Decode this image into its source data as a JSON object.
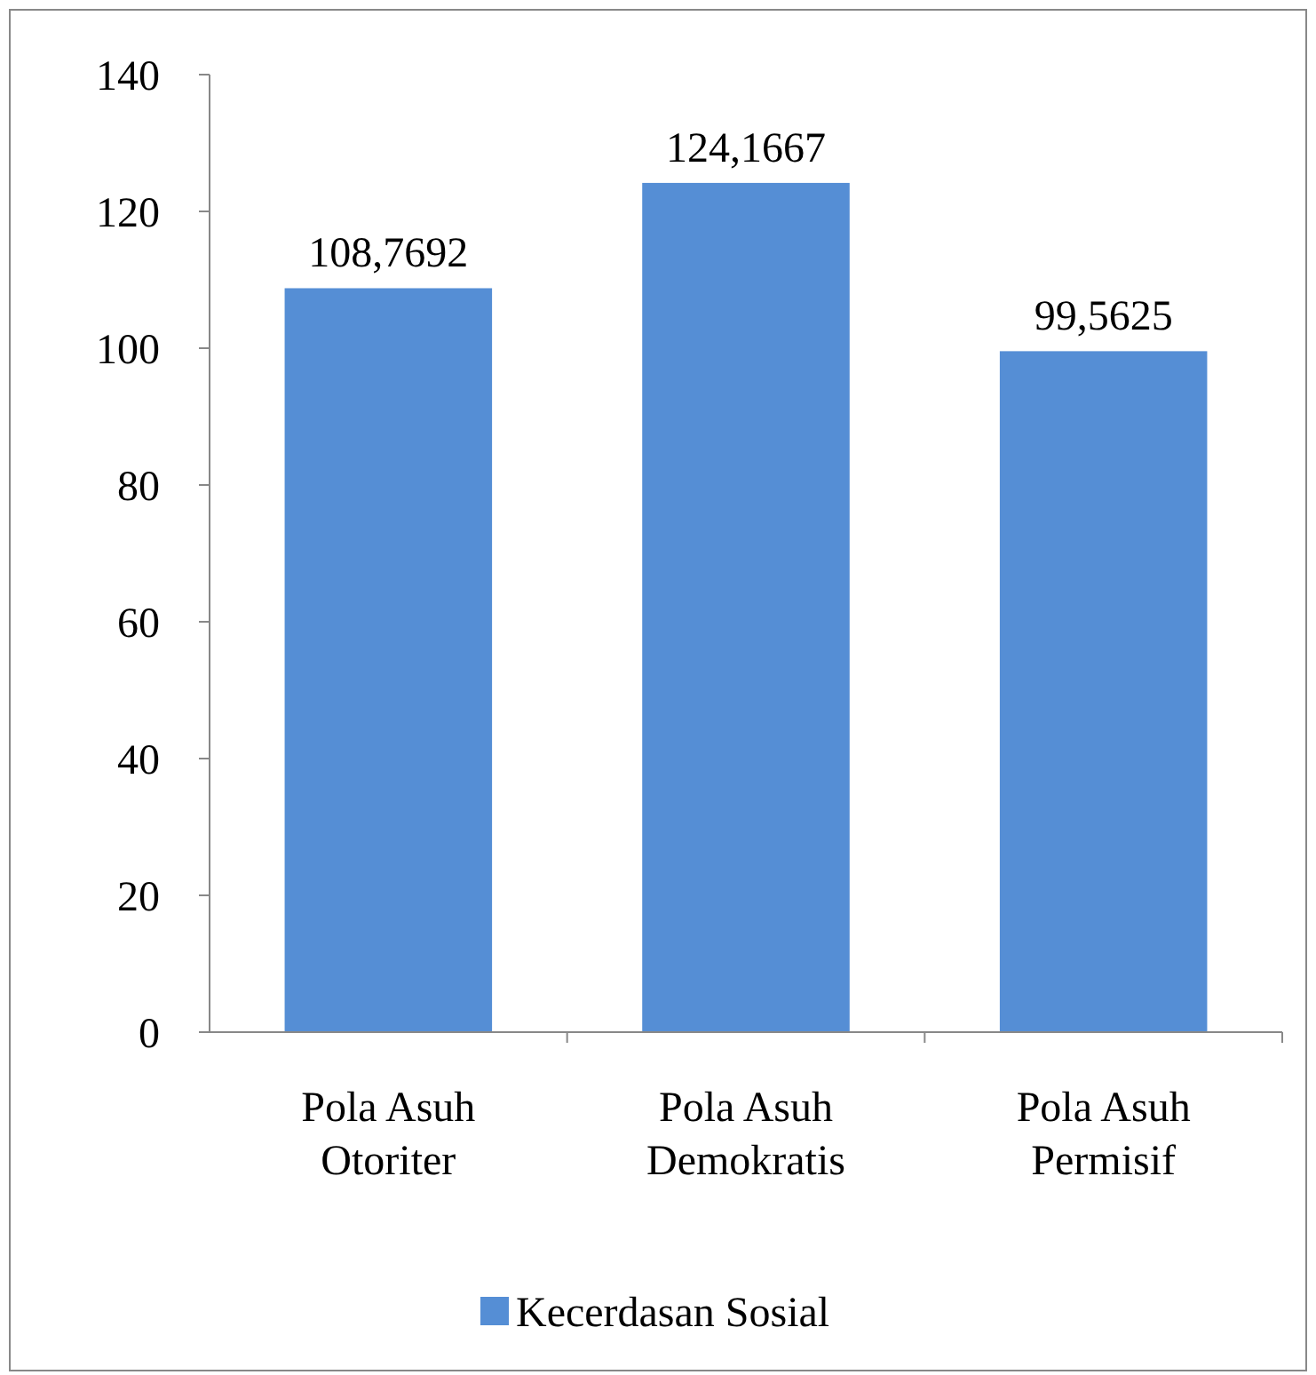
{
  "chart_data": {
    "type": "bar",
    "categories": [
      "Pola Asuh Otoriter",
      "Pola Asuh Demokratis",
      "Pola Asuh Permisif"
    ],
    "series": [
      {
        "name": "Kecerdasan Sosial",
        "color": "#558ed5",
        "values": [
          108.7692,
          124.1667,
          99.5625
        ]
      }
    ],
    "value_labels": [
      "108,7692",
      "124,1667",
      "99,5625"
    ],
    "ylim": [
      0,
      140
    ],
    "yticks": [
      0,
      20,
      40,
      60,
      80,
      100,
      120,
      140
    ],
    "grid": false,
    "legend": "bottom"
  }
}
